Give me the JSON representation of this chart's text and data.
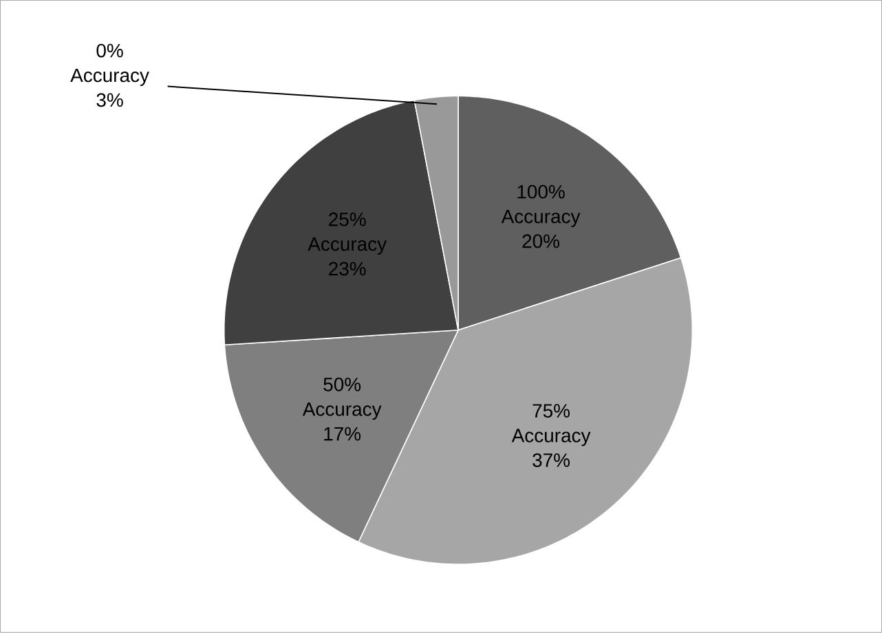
{
  "chart_data": {
    "type": "pie",
    "categories": [
      "100% Accuracy",
      "75% Accuracy",
      "50% Accuracy",
      "25% Accuracy",
      "0% Accuracy"
    ],
    "values": [
      20,
      37,
      17,
      23,
      3
    ],
    "value_labels": [
      "20%",
      "37%",
      "17%",
      "23%",
      "3%"
    ],
    "colors": [
      "#5f5f5f",
      "#a6a6a6",
      "#7f7f7f",
      "#404040",
      "#999999"
    ],
    "legend": false
  }
}
